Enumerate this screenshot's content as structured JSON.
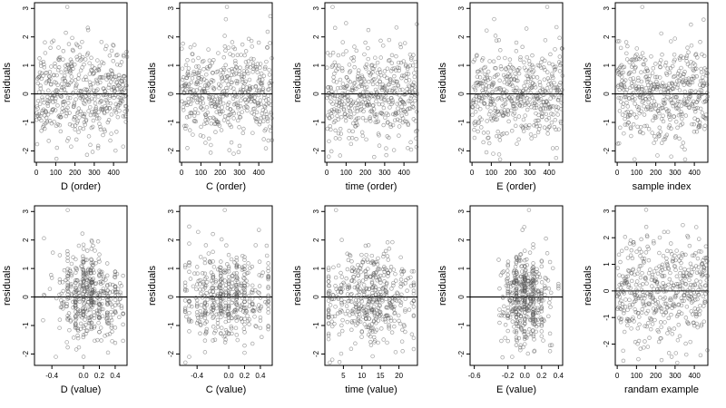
{
  "chart_data": [
    {
      "id": "p1",
      "type": "scatter",
      "xlabel": "D (order)",
      "ylabel": "residuals",
      "xlim": [
        -10,
        470
      ],
      "ylim": [
        -2.4,
        3.2
      ],
      "xticks": [
        0,
        100,
        200,
        300,
        400
      ],
      "xtick_labels": [
        "0",
        "100",
        "200",
        "300",
        "400"
      ],
      "yticks": [
        -2,
        -1,
        0,
        1,
        2,
        3
      ],
      "ytick_labels": [
        "-2",
        "-1",
        "0",
        "1",
        "2",
        "3"
      ],
      "reference_line_y": 0,
      "points": {
        "n": 470,
        "x_kind": "index",
        "x_range": [
          1,
          470
        ],
        "y_sd": 0.8,
        "y_range": [
          -2.3,
          3.05
        ],
        "seed": 11,
        "fixed": [
          [
            160,
            3.05
          ],
          [
            320,
            -1.9
          ],
          [
            180,
            -1.85
          ],
          [
            450,
            -1.85
          ],
          [
            470,
            1.3
          ]
        ]
      }
    },
    {
      "id": "p2",
      "type": "scatter",
      "xlabel": "C (order)",
      "ylabel": "residuals",
      "xlim": [
        -10,
        470
      ],
      "ylim": [
        -2.4,
        3.2
      ],
      "xticks": [
        0,
        100,
        200,
        300,
        400
      ],
      "xtick_labels": [
        "0",
        "100",
        "200",
        "300",
        "400"
      ],
      "yticks": [
        -2,
        -1,
        0,
        1,
        2,
        3
      ],
      "ytick_labels": [
        "-2",
        "-1",
        "0",
        "1",
        "2",
        "3"
      ],
      "reference_line_y": 0,
      "points": {
        "n": 470,
        "x_kind": "index",
        "x_range": [
          1,
          470
        ],
        "y_sd": 0.8,
        "y_range": [
          -2.3,
          3.05
        ],
        "seed": 23,
        "fixed": [
          [
            235,
            3.05
          ],
          [
            30,
            -1.9
          ],
          [
            270,
            -2.1
          ],
          [
            400,
            1.8
          ]
        ]
      }
    },
    {
      "id": "p3",
      "type": "scatter",
      "xlabel": "time (order)",
      "ylabel": "residuals",
      "xlim": [
        -10,
        470
      ],
      "ylim": [
        -2.4,
        3.2
      ],
      "xticks": [
        0,
        100,
        200,
        300,
        400
      ],
      "xtick_labels": [
        "0",
        "100",
        "200",
        "300",
        "400"
      ],
      "yticks": [
        -2,
        -1,
        0,
        1,
        2,
        3
      ],
      "ytick_labels": [
        "-2",
        "-1",
        "0",
        "1",
        "2",
        "3"
      ],
      "reference_line_y": 0,
      "points": {
        "n": 470,
        "x_kind": "index",
        "x_range": [
          1,
          470
        ],
        "y_sd": 0.8,
        "y_range": [
          -2.3,
          3.05
        ],
        "seed": 37,
        "fixed": [
          [
            30,
            3.05
          ],
          [
            10,
            -2.2
          ],
          [
            200,
            1.8
          ],
          [
            420,
            -1.9
          ]
        ]
      }
    },
    {
      "id": "p4",
      "type": "scatter",
      "xlabel": "E (order)",
      "ylabel": "residuals",
      "xlim": [
        -10,
        470
      ],
      "ylim": [
        -2.4,
        3.2
      ],
      "xticks": [
        0,
        100,
        200,
        300,
        400
      ],
      "xtick_labels": [
        "0",
        "100",
        "200",
        "300",
        "400"
      ],
      "yticks": [
        -2,
        -1,
        0,
        1,
        2,
        3
      ],
      "ytick_labels": [
        "-2",
        "-1",
        "0",
        "1",
        "2",
        "3"
      ],
      "reference_line_y": 0,
      "points": {
        "n": 470,
        "x_kind": "index",
        "x_range": [
          1,
          470
        ],
        "y_sd": 0.8,
        "y_range": [
          -2.3,
          3.05
        ],
        "seed": 41,
        "fixed": [
          [
            390,
            3.05
          ],
          [
            110,
            -2.1
          ],
          [
            440,
            -1.9
          ],
          [
            230,
            1.8
          ]
        ]
      }
    },
    {
      "id": "p5",
      "type": "scatter",
      "xlabel": "sample index",
      "ylabel": "residuals",
      "xlim": [
        -10,
        470
      ],
      "ylim": [
        -2.4,
        3.2
      ],
      "xticks": [
        0,
        100,
        200,
        300,
        400
      ],
      "xtick_labels": [
        "0",
        "100",
        "200",
        "300",
        "400"
      ],
      "yticks": [
        -2,
        -1,
        0,
        1,
        2,
        3
      ],
      "ytick_labels": [
        "-2",
        "-1",
        "0",
        "1",
        "2",
        "3"
      ],
      "reference_line_y": 0,
      "points": {
        "n": 470,
        "x_kind": "index",
        "x_range": [
          1,
          470
        ],
        "y_sd": 0.8,
        "y_range": [
          -2.3,
          3.05
        ],
        "seed": 53,
        "fixed": [
          [
            130,
            3.05
          ],
          [
            10,
            1.85
          ],
          [
            280,
            -2.2
          ],
          [
            350,
            -1.95
          ]
        ]
      }
    },
    {
      "id": "p6",
      "type": "scatter",
      "xlabel": "D (value)",
      "ylabel": "residuals",
      "xlim": [
        -0.62,
        0.55
      ],
      "ylim": [
        -2.4,
        3.2
      ],
      "xticks": [
        -0.4,
        0.0,
        0.2,
        0.4
      ],
      "xtick_labels": [
        "-0.4",
        "0.0",
        "0.2",
        "0.4"
      ],
      "yticks": [
        -2,
        -1,
        0,
        1,
        2,
        3
      ],
      "ytick_labels": [
        "-2",
        "-1",
        "0",
        "1",
        "2",
        "3"
      ],
      "reference_line_y": 0,
      "points": {
        "n": 470,
        "x_kind": "value",
        "x_range": [
          -0.55,
          0.5
        ],
        "x_center": 0.05,
        "x_sd": 0.22,
        "y_sd": 0.8,
        "y_range": [
          -2.3,
          3.05
        ],
        "seed": 61,
        "fixed": [
          [
            -0.2,
            3.05
          ],
          [
            0.12,
            1.8
          ],
          [
            -0.35,
            -2.1
          ]
        ]
      }
    },
    {
      "id": "p7",
      "type": "scatter",
      "xlabel": "C (value)",
      "ylabel": "residuals",
      "xlim": [
        -0.62,
        0.55
      ],
      "ylim": [
        -2.4,
        3.2
      ],
      "xticks": [
        -0.4,
        0.0,
        0.2,
        0.4
      ],
      "xtick_labels": [
        "-0.4",
        "0.0",
        "0.2",
        "0.4"
      ],
      "yticks": [
        -2,
        -1,
        0,
        1,
        2,
        3
      ],
      "ytick_labels": [
        "-2",
        "-1",
        "0",
        "1",
        "2",
        "3"
      ],
      "reference_line_y": 0,
      "points": {
        "n": 470,
        "x_kind": "value",
        "x_range": [
          -0.55,
          0.5
        ],
        "x_center": 0.0,
        "x_sd": 0.3,
        "y_sd": 0.8,
        "y_range": [
          -2.3,
          3.05
        ],
        "seed": 71,
        "fixed": [
          [
            -0.05,
            3.05
          ],
          [
            0.48,
            1.8
          ],
          [
            -0.5,
            -2.1
          ]
        ]
      }
    },
    {
      "id": "p8",
      "type": "scatter",
      "xlabel": "time (value)",
      "ylabel": "residuals",
      "xlim": [
        0,
        25
      ],
      "ylim": [
        -2.4,
        3.2
      ],
      "xticks": [
        5,
        10,
        15,
        20
      ],
      "xtick_labels": [
        "5",
        "10",
        "15",
        "20"
      ],
      "yticks": [
        -2,
        -1,
        0,
        1,
        2,
        3
      ],
      "ytick_labels": [
        "-2",
        "-1",
        "0",
        "1",
        "2",
        "3"
      ],
      "reference_line_y": 0,
      "points": {
        "n": 470,
        "x_kind": "value",
        "x_range": [
          1,
          24
        ],
        "x_center": 12,
        "x_sd": 6.5,
        "y_sd": 0.8,
        "y_range": [
          -2.3,
          3.05
        ],
        "seed": 83,
        "fixed": [
          [
            3,
            3.05
          ],
          [
            2,
            -2.2
          ],
          [
            11,
            1.8
          ],
          [
            21,
            -1.9
          ]
        ]
      }
    },
    {
      "id": "p9",
      "type": "scatter",
      "xlabel": "E (value)",
      "ylabel": "residuals",
      "xlim": [
        -0.65,
        0.45
      ],
      "ylim": [
        -2.4,
        3.2
      ],
      "xticks": [
        -0.6,
        -0.2,
        0.0,
        0.2,
        0.4
      ],
      "xtick_labels": [
        "-0.6",
        "-0.2",
        "0.0",
        "0.2",
        "0.4"
      ],
      "yticks": [
        -2,
        -1,
        0,
        1,
        2,
        3
      ],
      "ytick_labels": [
        "-2",
        "-1",
        "0",
        "1",
        "2",
        "3"
      ],
      "reference_line_y": 0,
      "points": {
        "n": 470,
        "x_kind": "value",
        "x_range": [
          -0.6,
          0.4
        ],
        "x_center": 0.0,
        "x_sd": 0.13,
        "y_sd": 0.8,
        "y_range": [
          -2.3,
          3.05
        ],
        "seed": 97,
        "fixed": [
          [
            0.05,
            3.05
          ],
          [
            -0.15,
            -2.1
          ],
          [
            0.3,
            -1.9
          ]
        ]
      }
    },
    {
      "id": "p10",
      "type": "scatter",
      "xlabel": "randam example",
      "ylabel": "residuals",
      "xlim": [
        -10,
        470
      ],
      "ylim": [
        -2.8,
        3.2
      ],
      "xticks": [
        0,
        100,
        200,
        300,
        400
      ],
      "xtick_labels": [
        "0",
        "100",
        "200",
        "300",
        "400"
      ],
      "yticks": [
        -2,
        -1,
        0,
        1,
        2,
        3
      ],
      "ytick_labels": [
        "-2",
        "-1",
        "0",
        "1",
        "2",
        "3"
      ],
      "reference_line_y": 0,
      "points": {
        "n": 470,
        "x_kind": "index",
        "x_range": [
          1,
          470
        ],
        "y_sd": 1.0,
        "y_range": [
          -2.7,
          3.05
        ],
        "seed": 113,
        "fixed": [
          [
            150,
            3.05
          ],
          [
            230,
            -2.6
          ],
          [
            410,
            2.4
          ]
        ]
      }
    }
  ]
}
